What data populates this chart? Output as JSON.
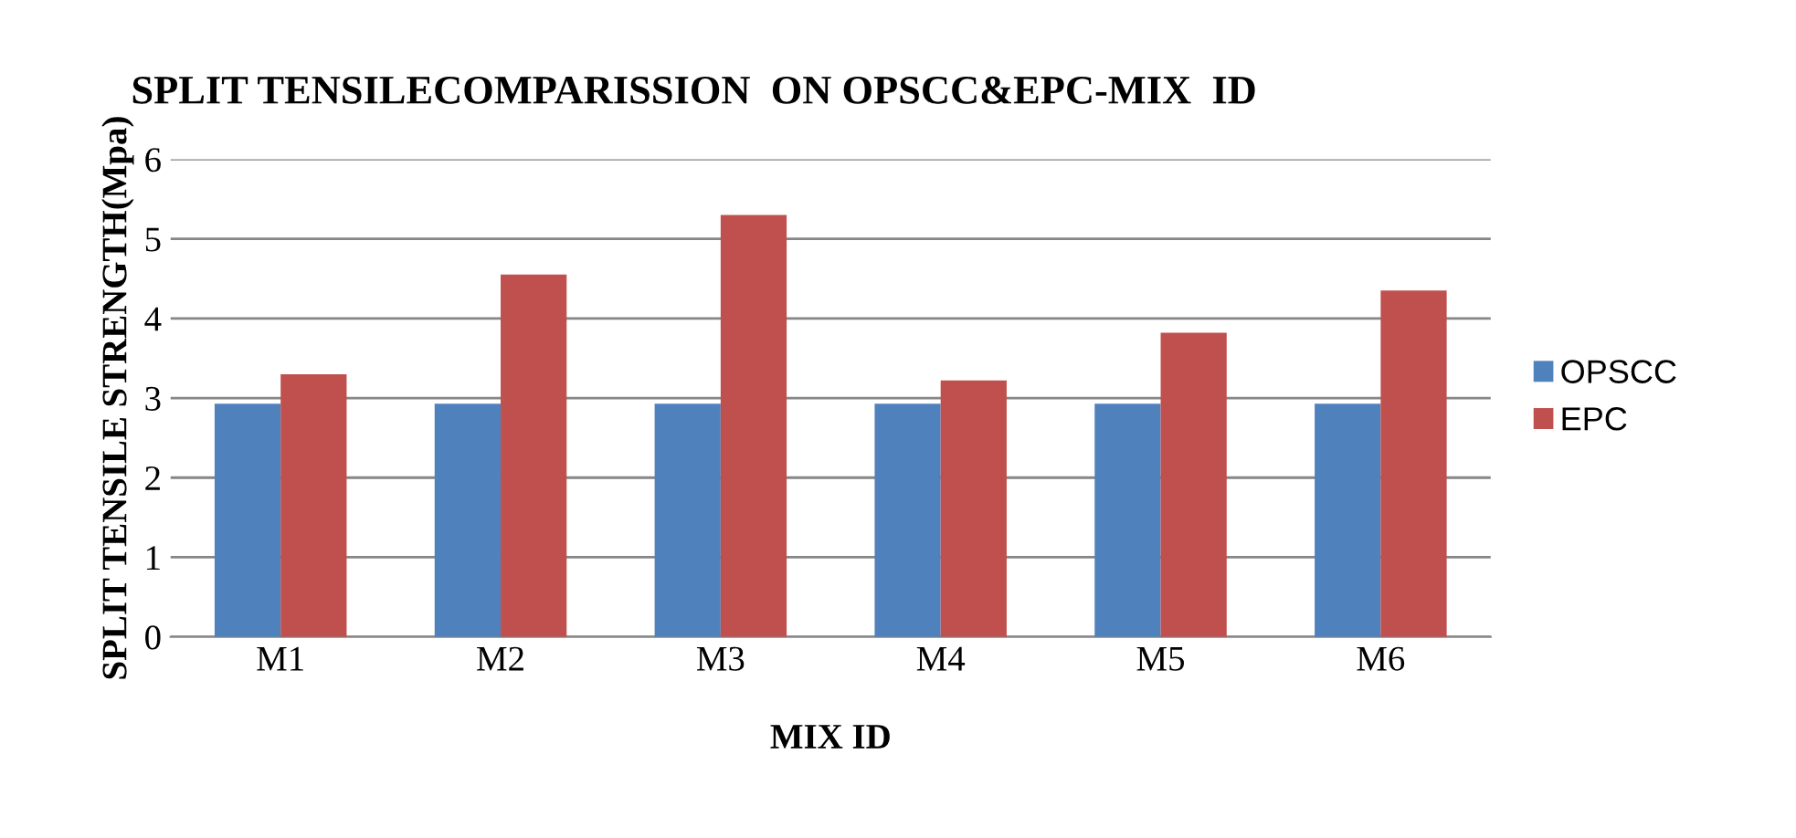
{
  "chart_data": {
    "type": "bar",
    "title": "SPLIT TENSILECOMPARISSION  ON OPSCC&EPC-MIX  ID",
    "xlabel": "MIX ID",
    "ylabel": "SPLIT TENSILE STRENGTH(Mpa)",
    "categories": [
      "M1",
      "M2",
      "M3",
      "M4",
      "M5",
      "M6"
    ],
    "series": [
      {
        "name": "OPSCC",
        "color": "#4f81bd",
        "values": [
          2.93,
          2.93,
          2.93,
          2.93,
          2.93,
          2.93
        ]
      },
      {
        "name": "EPC",
        "color": "#c0504d",
        "values": [
          3.3,
          4.55,
          5.3,
          3.22,
          3.82,
          4.35
        ]
      }
    ],
    "ylim": [
      0,
      6
    ],
    "yticks": [
      0,
      1,
      2,
      3,
      4,
      5,
      6
    ],
    "grid": "y",
    "legend": "right"
  }
}
